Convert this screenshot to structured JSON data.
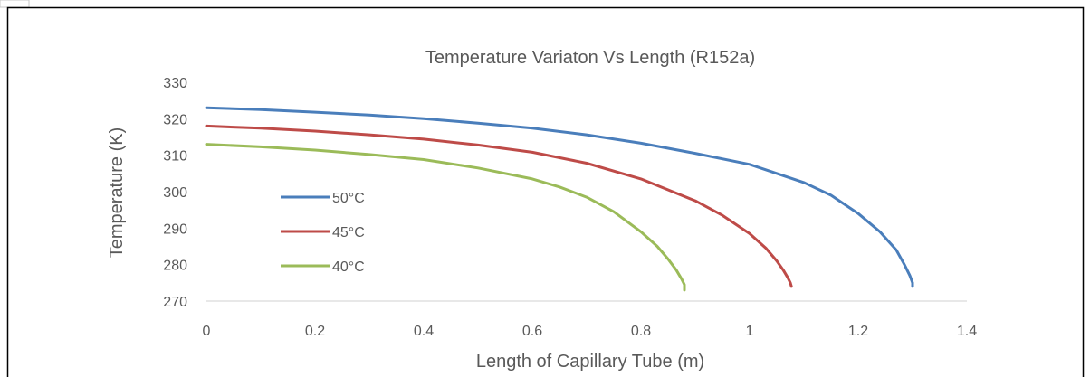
{
  "chart_data": {
    "type": "line",
    "title": "Temperature Variaton Vs Length (R152a)",
    "xlabel": "Length of Capillary Tube (m)",
    "ylabel": "Temperature (K)",
    "xlim": [
      0,
      1.4
    ],
    "ylim": [
      270,
      330
    ],
    "xticks": [
      0,
      0.2,
      0.4,
      0.6,
      0.8,
      1,
      1.2,
      1.4
    ],
    "xtick_labels": [
      "0",
      "0.2",
      "0.4",
      "0.6",
      "0.8",
      "1",
      "1.2",
      "1.4"
    ],
    "yticks": [
      270,
      280,
      290,
      300,
      310,
      320,
      330
    ],
    "ytick_labels": [
      "270",
      "280",
      "290",
      "300",
      "310",
      "320",
      "330"
    ],
    "grid": false,
    "legend_position": "left",
    "series": [
      {
        "name": "50°C",
        "color": "#4a7ebb",
        "x": [
          0,
          0.1,
          0.2,
          0.3,
          0.4,
          0.5,
          0.6,
          0.7,
          0.8,
          0.9,
          1.0,
          1.1,
          1.15,
          1.2,
          1.24,
          1.27,
          1.285,
          1.295,
          1.3,
          1.3
        ],
        "y": [
          323,
          322.5,
          321.8,
          321,
          320,
          318.8,
          317.4,
          315.6,
          313.3,
          310.5,
          307.5,
          302.5,
          299,
          294,
          289,
          284,
          280,
          277,
          275,
          274
        ]
      },
      {
        "name": "45°C",
        "color": "#be4b48",
        "x": [
          0,
          0.1,
          0.2,
          0.3,
          0.4,
          0.5,
          0.6,
          0.7,
          0.8,
          0.9,
          0.95,
          1.0,
          1.03,
          1.05,
          1.062,
          1.07,
          1.075,
          1.077
        ],
        "y": [
          318,
          317.4,
          316.6,
          315.6,
          314.4,
          312.8,
          310.8,
          307.8,
          303.5,
          297.5,
          293.5,
          288.5,
          284.5,
          281,
          278.5,
          276.5,
          275,
          274
        ]
      },
      {
        "name": "40°C",
        "color": "#9bbb59",
        "x": [
          0,
          0.1,
          0.2,
          0.3,
          0.4,
          0.5,
          0.6,
          0.65,
          0.7,
          0.75,
          0.8,
          0.83,
          0.85,
          0.865,
          0.875,
          0.88,
          0.88
        ],
        "y": [
          313,
          312.3,
          311.4,
          310.2,
          308.8,
          306.5,
          303.5,
          301.3,
          298.5,
          294.5,
          289,
          285,
          281.5,
          278.5,
          276,
          274.5,
          273
        ]
      }
    ]
  }
}
